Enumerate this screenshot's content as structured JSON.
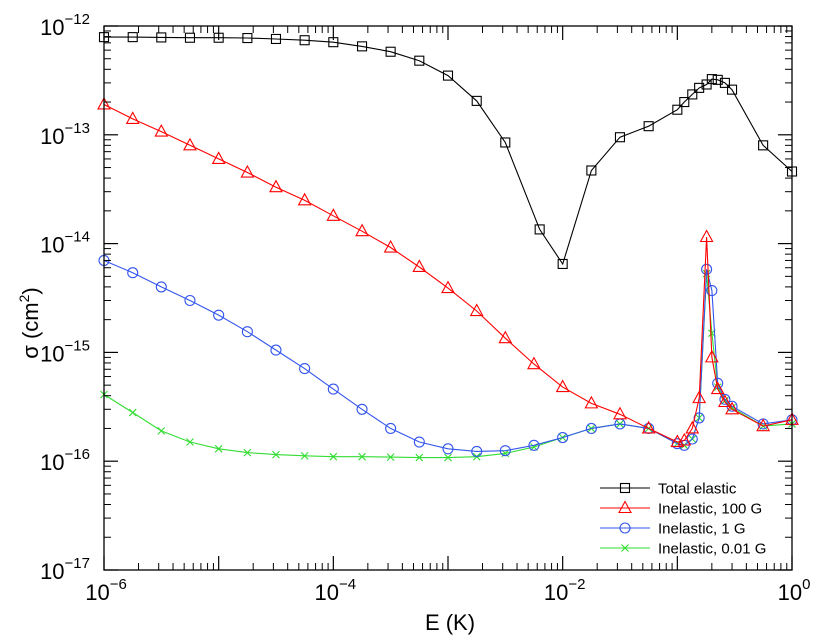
{
  "chart_data": {
    "type": "line",
    "title": "",
    "xlabel": "E (K)",
    "ylabel_main": "σ (cm",
    "ylabel_exp": "2",
    "ylabel_close": ")",
    "xscale": "log",
    "yscale": "log",
    "xlim": [
      1e-06,
      1
    ],
    "ylim": [
      1e-17,
      1e-12
    ],
    "grid": false,
    "legend_position": "bottom-right",
    "x_ticks": [
      {
        "value": 1e-06,
        "base": "10",
        "exp": "−6"
      },
      {
        "value": 0.0001,
        "base": "10",
        "exp": "−4"
      },
      {
        "value": 0.01,
        "base": "10",
        "exp": "−2"
      },
      {
        "value": 1,
        "base": "10",
        "exp": "0"
      }
    ],
    "y_ticks": [
      {
        "value": 1e-17,
        "base": "10",
        "exp": "−17"
      },
      {
        "value": 1e-16,
        "base": "10",
        "exp": "−16"
      },
      {
        "value": 1e-15,
        "base": "10",
        "exp": "−15"
      },
      {
        "value": 1e-14,
        "base": "10",
        "exp": "−14"
      },
      {
        "value": 1e-13,
        "base": "10",
        "exp": "−13"
      },
      {
        "value": 1e-12,
        "base": "10",
        "exp": "−12"
      }
    ],
    "series": [
      {
        "name": "Total elastic",
        "color": "#000000",
        "marker": "square",
        "points": [
          [
            1e-06,
            7.9e-13
          ],
          [
            1.78e-06,
            7.9e-13
          ],
          [
            3.16e-06,
            7.85e-13
          ],
          [
            5.62e-06,
            7.8e-13
          ],
          [
            1e-05,
            7.8e-13
          ],
          [
            1.78e-05,
            7.75e-13
          ],
          [
            3.16e-05,
            7.6e-13
          ],
          [
            5.62e-05,
            7.4e-13
          ],
          [
            0.0001,
            7.1e-13
          ],
          [
            0.000178,
            6.5e-13
          ],
          [
            0.000316,
            5.8e-13
          ],
          [
            0.000562,
            4.8e-13
          ],
          [
            0.001,
            3.5e-13
          ],
          [
            0.00178,
            2.05e-13
          ],
          [
            0.00316,
            8.5e-14
          ],
          [
            0.0063,
            1.35e-14
          ],
          [
            0.01,
            6.5e-15
          ],
          [
            0.0178,
            4.7e-14
          ],
          [
            0.0316,
            9.5e-14
          ],
          [
            0.0562,
            1.2e-13
          ],
          [
            0.1,
            1.7e-13
          ],
          [
            0.115,
            2e-13
          ],
          [
            0.135,
            2.35e-13
          ],
          [
            0.155,
            2.7e-13
          ],
          [
            0.18,
            2.9e-13
          ],
          [
            0.2,
            3.25e-13
          ],
          [
            0.225,
            3.2e-13
          ],
          [
            0.26,
            3e-13
          ],
          [
            0.3,
            2.6e-13
          ],
          [
            0.56,
            8e-14
          ],
          [
            1,
            4.6e-14
          ]
        ]
      },
      {
        "name": "Inelastic, 100 G",
        "color": "#ff0000",
        "marker": "triangle",
        "points": [
          [
            1e-06,
            1.9e-13
          ],
          [
            1.78e-06,
            1.4e-13
          ],
          [
            3.16e-06,
            1.07e-13
          ],
          [
            5.62e-06,
            8e-14
          ],
          [
            1e-05,
            6e-14
          ],
          [
            1.78e-05,
            4.5e-14
          ],
          [
            3.16e-05,
            3.3e-14
          ],
          [
            5.62e-05,
            2.5e-14
          ],
          [
            0.0001,
            1.8e-14
          ],
          [
            0.000178,
            1.3e-14
          ],
          [
            0.000316,
            9.2e-15
          ],
          [
            0.000562,
            6.1e-15
          ],
          [
            0.001,
            3.9e-15
          ],
          [
            0.00178,
            2.4e-15
          ],
          [
            0.00316,
            1.35e-15
          ],
          [
            0.00562,
            7.8e-16
          ],
          [
            0.01,
            4.8e-16
          ],
          [
            0.0178,
            3.4e-16
          ],
          [
            0.0316,
            2.7e-16
          ],
          [
            0.0562,
            2e-16
          ],
          [
            0.1,
            1.5e-16
          ],
          [
            0.115,
            1.55e-16
          ],
          [
            0.135,
            2e-16
          ],
          [
            0.155,
            3.8e-16
          ],
          [
            0.18,
            1.15e-14
          ],
          [
            0.2,
            9e-16
          ],
          [
            0.225,
            4.6e-16
          ],
          [
            0.26,
            3.5e-16
          ],
          [
            0.3,
            3e-16
          ],
          [
            0.56,
            2.1e-16
          ],
          [
            1,
            2.4e-16
          ]
        ]
      },
      {
        "name": "Inelastic, 1 G",
        "color": "#3355ee",
        "marker": "circle",
        "points": [
          [
            1e-06,
            7e-15
          ],
          [
            1.78e-06,
            5.4e-15
          ],
          [
            3.16e-06,
            4e-15
          ],
          [
            5.62e-06,
            3e-15
          ],
          [
            1e-05,
            2.2e-15
          ],
          [
            1.78e-05,
            1.55e-15
          ],
          [
            3.16e-05,
            1.05e-15
          ],
          [
            5.62e-05,
            7.1e-16
          ],
          [
            0.0001,
            4.6e-16
          ],
          [
            0.000178,
            3e-16
          ],
          [
            0.000316,
            2e-16
          ],
          [
            0.000562,
            1.5e-16
          ],
          [
            0.001,
            1.3e-16
          ],
          [
            0.00178,
            1.23e-16
          ],
          [
            0.00316,
            1.25e-16
          ],
          [
            0.00562,
            1.4e-16
          ],
          [
            0.01,
            1.65e-16
          ],
          [
            0.0178,
            2e-16
          ],
          [
            0.0316,
            2.2e-16
          ],
          [
            0.0562,
            2e-16
          ],
          [
            0.1,
            1.45e-16
          ],
          [
            0.115,
            1.4e-16
          ],
          [
            0.135,
            1.6e-16
          ],
          [
            0.155,
            2.5e-16
          ],
          [
            0.18,
            5.8e-15
          ],
          [
            0.2,
            3.7e-15
          ],
          [
            0.225,
            5.2e-16
          ],
          [
            0.26,
            3.7e-16
          ],
          [
            0.3,
            3.2e-16
          ],
          [
            0.56,
            2.2e-16
          ],
          [
            1,
            2.4e-16
          ]
        ]
      },
      {
        "name": "Inelastic, 0.01 G",
        "color": "#33dd33",
        "marker": "x",
        "points": [
          [
            1e-06,
            4.1e-16
          ],
          [
            1.78e-06,
            2.8e-16
          ],
          [
            3.16e-06,
            1.9e-16
          ],
          [
            5.62e-06,
            1.5e-16
          ],
          [
            1e-05,
            1.3e-16
          ],
          [
            1.78e-05,
            1.2e-16
          ],
          [
            3.16e-05,
            1.15e-16
          ],
          [
            5.62e-05,
            1.12e-16
          ],
          [
            0.0001,
            1.1e-16
          ],
          [
            0.000178,
            1.1e-16
          ],
          [
            0.000316,
            1.09e-16
          ],
          [
            0.000562,
            1.08e-16
          ],
          [
            0.001,
            1.08e-16
          ],
          [
            0.00178,
            1.1e-16
          ],
          [
            0.00316,
            1.18e-16
          ],
          [
            0.00562,
            1.35e-16
          ],
          [
            0.01,
            1.65e-16
          ],
          [
            0.0178,
            2e-16
          ],
          [
            0.0316,
            2.2e-16
          ],
          [
            0.0562,
            2e-16
          ],
          [
            0.1,
            1.45e-16
          ],
          [
            0.115,
            1.4e-16
          ],
          [
            0.135,
            1.6e-16
          ],
          [
            0.155,
            2.5e-16
          ],
          [
            0.18,
            5.3e-15
          ],
          [
            0.2,
            1.5e-15
          ],
          [
            0.225,
            4.8e-16
          ],
          [
            0.26,
            3.6e-16
          ],
          [
            0.3,
            3.1e-16
          ],
          [
            0.56,
            2.1e-16
          ],
          [
            1,
            2.2e-16
          ]
        ]
      }
    ]
  }
}
